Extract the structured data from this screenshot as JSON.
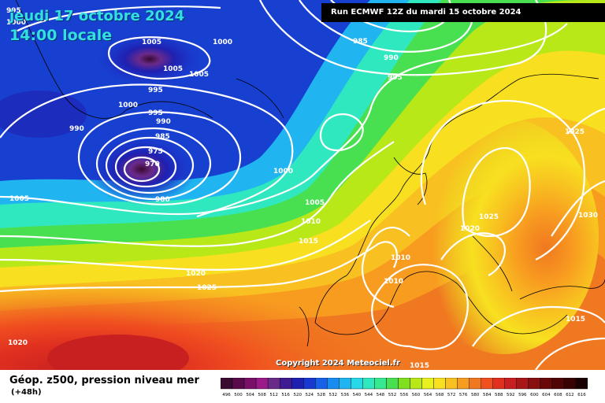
{
  "header": {
    "date_title": "jeudi 17 octobre 2024",
    "time_title": "14:00 locale",
    "run_label": "Run ECMWF 12Z du mardi 15 octobre 2024"
  },
  "copyright": "Copyright 2024 Meteociel.fr",
  "footer": {
    "product_title": "Géop. z500, pression niveau mer",
    "lead_time": "(+48h)"
  },
  "color_scale": {
    "labels": [
      "496",
      "500",
      "504",
      "508",
      "512",
      "516",
      "520",
      "524",
      "528",
      "532",
      "536",
      "540",
      "544",
      "548",
      "552",
      "556",
      "560",
      "564",
      "568",
      "572",
      "576",
      "580",
      "584",
      "588",
      "592",
      "596",
      "600",
      "604",
      "608",
      "612",
      "616"
    ],
    "colors": [
      "#3a0a30",
      "#5a0a4a",
      "#7a106a",
      "#9a1a8a",
      "#6a2a8a",
      "#401a90",
      "#2020b0",
      "#1838d0",
      "#1860e8",
      "#1a8cf0",
      "#20b4f0",
      "#28d8e8",
      "#30e8c0",
      "#38e890",
      "#48e050",
      "#80e020",
      "#b8e818",
      "#e8f020",
      "#f8e020",
      "#f8c020",
      "#f89c20",
      "#f07820",
      "#f05020",
      "#e03020",
      "#c82020",
      "#a81818",
      "#881010",
      "#680808",
      "#500404",
      "#380202",
      "#1a0000"
    ]
  },
  "isobar_labels": [
    {
      "text": "995"
    },
    {
      "text": "1000"
    },
    {
      "text": "1005"
    },
    {
      "text": "1000"
    },
    {
      "text": "1005"
    },
    {
      "text": "1005"
    },
    {
      "text": "985"
    },
    {
      "text": "990"
    },
    {
      "text": "995"
    },
    {
      "text": "995"
    },
    {
      "text": "995"
    },
    {
      "text": "990"
    },
    {
      "text": "1000"
    },
    {
      "text": "990"
    },
    {
      "text": "985"
    },
    {
      "text": "975"
    },
    {
      "text": "970"
    },
    {
      "text": "980"
    },
    {
      "text": "1005"
    },
    {
      "text": "1000"
    },
    {
      "text": "1005"
    },
    {
      "text": "1010"
    },
    {
      "text": "1015"
    },
    {
      "text": "1020"
    },
    {
      "text": "1025"
    },
    {
      "text": "1020"
    },
    {
      "text": "1010"
    },
    {
      "text": "1010"
    },
    {
      "text": "1015"
    },
    {
      "text": "1020"
    },
    {
      "text": "1025"
    },
    {
      "text": "1025"
    },
    {
      "text": "1030"
    },
    {
      "text": "1015"
    }
  ]
}
